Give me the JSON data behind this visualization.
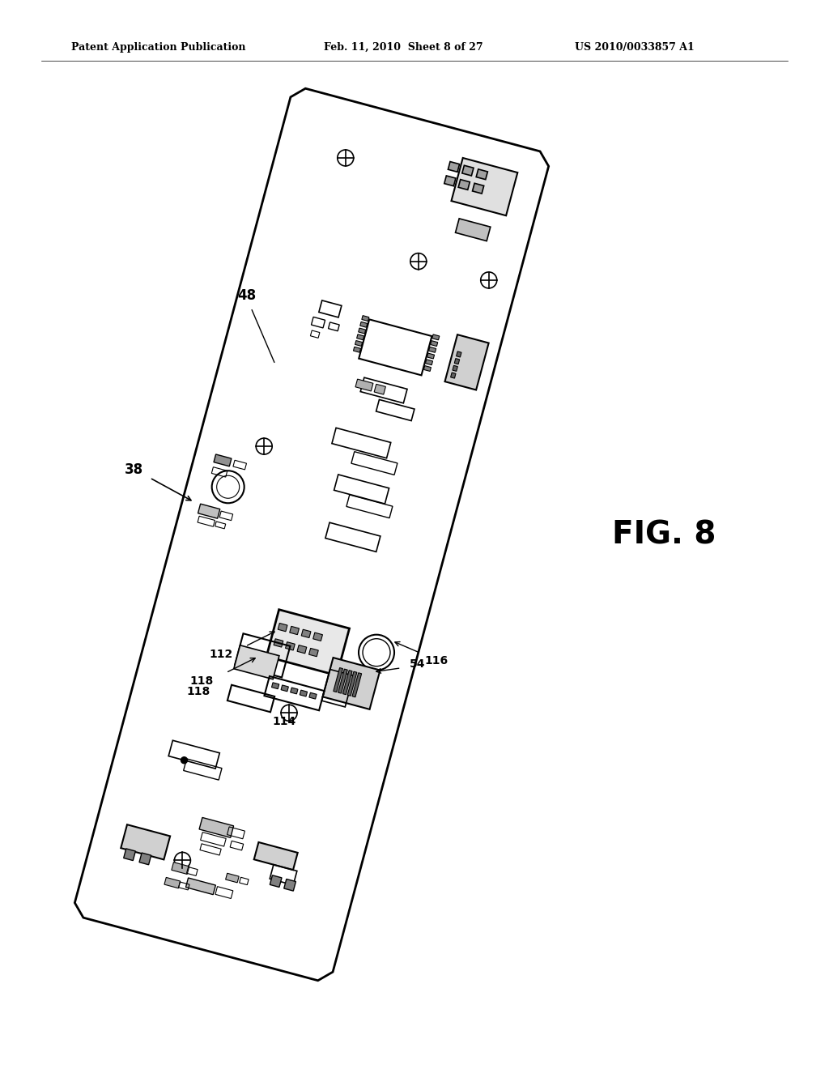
{
  "bg_color": "#ffffff",
  "line_color": "#000000",
  "header_left": "Patent Application Publication",
  "header_mid": "Feb. 11, 2010  Sheet 8 of 27",
  "header_right": "US 2010/0033857 A1",
  "fig_label": "FIG. 8",
  "label_38": "38",
  "label_48": "48",
  "label_54": "54",
  "label_112": "112",
  "label_114": "114",
  "label_116": "116",
  "label_118a": "118",
  "label_118b": "118"
}
